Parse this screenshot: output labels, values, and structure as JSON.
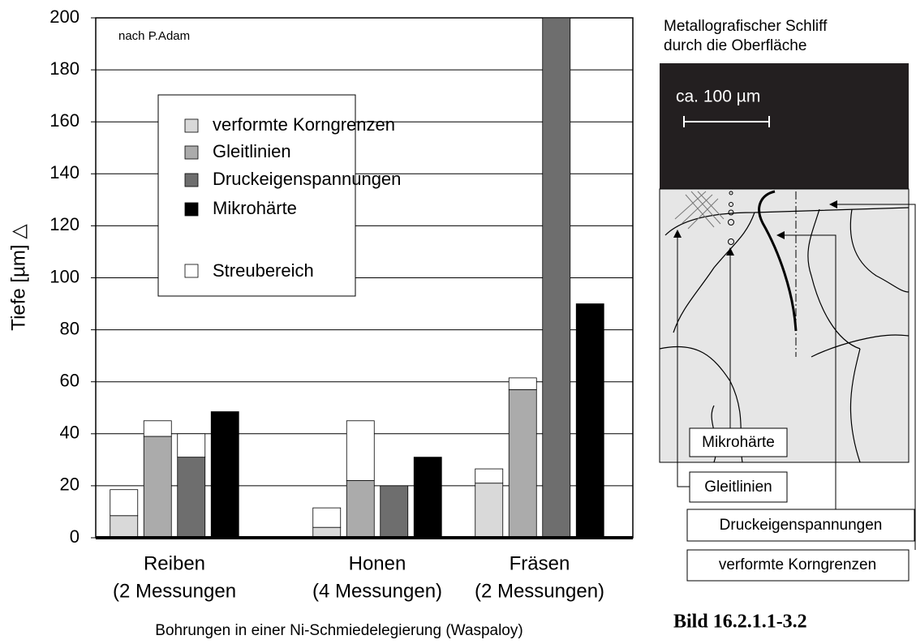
{
  "chart_data": {
    "type": "bar",
    "annotation": "nach P.Adam",
    "ylabel": "Tiefe [µm] △",
    "xlabel": "Bohrungen in einer Ni-Schmiedelegierung (Waspaloy)",
    "categories": [
      "Reiben",
      "Honen",
      "Fräsen"
    ],
    "category_notes": [
      "(2 Messungen",
      "(4 Messungen)",
      "(2 Messungen)"
    ],
    "series": [
      {
        "name": "verformte Korngrenzen",
        "color": "#d9d9d9",
        "values": [
          8.5,
          4,
          21
        ],
        "upper": [
          18.5,
          11.5,
          26.5
        ]
      },
      {
        "name": "Gleitlinien",
        "color": "#ababab",
        "values": [
          39,
          22,
          57
        ],
        "upper": [
          45,
          45,
          61.5
        ]
      },
      {
        "name": "Druckeigenspannungen",
        "color": "#6e6e6e",
        "values": [
          31,
          20,
          200
        ],
        "upper": [
          40,
          null,
          null
        ]
      },
      {
        "name": "Mikrohärte",
        "color": "#000000",
        "values": [
          48.5,
          31,
          90
        ],
        "upper": [
          null,
          null,
          null
        ]
      }
    ],
    "range_legend": {
      "name": "Streubereich",
      "color": "#ffffff"
    },
    "ylim": [
      0,
      200
    ],
    "yticks": [
      0,
      20,
      40,
      60,
      80,
      100,
      120,
      140,
      160,
      180,
      200
    ],
    "grid": true
  },
  "diagram": {
    "title_lines": [
      "Metallografischer Schliff",
      "durch die Oberfläche"
    ],
    "scale": "ca. 100 µm",
    "labels": [
      "Mikrohärte",
      "Gleitlinien",
      "Druckeigenspannungen",
      "verformte Korngrenzen"
    ],
    "caption": "Bild 16.2.1.1-3.2"
  }
}
